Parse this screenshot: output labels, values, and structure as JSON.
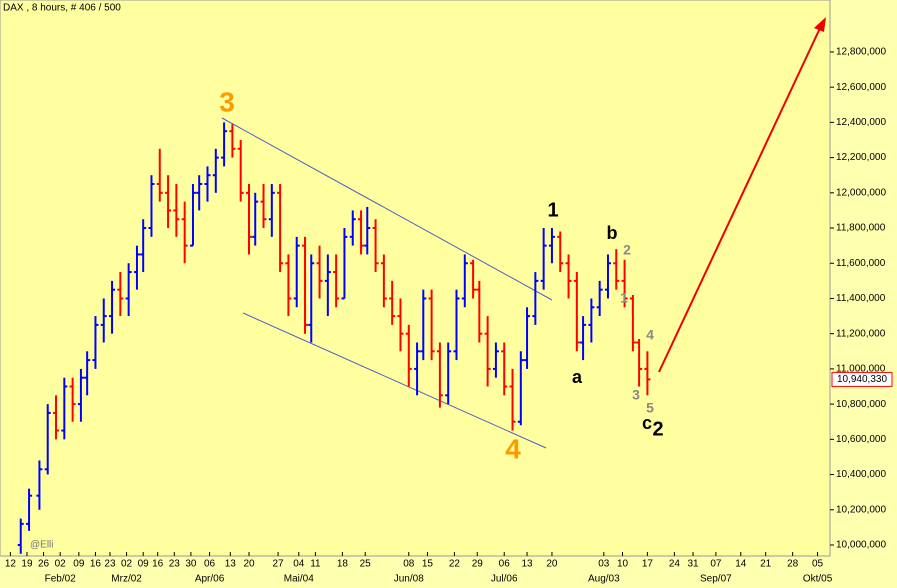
{
  "chart_data": {
    "type": "ohlc",
    "title": "DAX , 8 hours, # 406 / 500",
    "watermark": "@Elli",
    "x": [
      10,
      14,
      19,
      23,
      27,
      31,
      35,
      39,
      42,
      46,
      50,
      54,
      58,
      62,
      66,
      69,
      73,
      77,
      81,
      85,
      89,
      93,
      96,
      100,
      104,
      108,
      112,
      116,
      120,
      123,
      127,
      131,
      135,
      139,
      143,
      147,
      150,
      154,
      158,
      162,
      166,
      170,
      174,
      177,
      181,
      185,
      189,
      193,
      197,
      201,
      204,
      208,
      212,
      216,
      220,
      224,
      228,
      231,
      235,
      239,
      243,
      247,
      251,
      254,
      258,
      262,
      266,
      270,
      274,
      278,
      281,
      285,
      289,
      293,
      297,
      301,
      305,
      308,
      312
    ],
    "open": [
      10000000,
      10120000,
      10280000,
      10430000,
      10750000,
      10650000,
      10900000,
      10800000,
      10950000,
      11050000,
      11250000,
      11300000,
      11450000,
      11400000,
      11550000,
      11650000,
      11800000,
      12050000,
      12000000,
      11900000,
      11850000,
      11700000,
      12000000,
      12050000,
      12100000,
      12200000,
      12350000,
      12250000,
      12000000,
      11750000,
      11950000,
      11850000,
      12000000,
      11600000,
      11400000,
      11700000,
      11250000,
      11600000,
      11500000,
      11550000,
      11400000,
      11750000,
      11850000,
      11700000,
      11800000,
      11600000,
      11400000,
      11300000,
      11200000,
      11000000,
      11100000,
      11400000,
      11100000,
      10850000,
      11100000,
      11400000,
      11600000,
      11450000,
      11200000,
      11000000,
      11100000,
      10900000,
      10700000,
      11050000,
      11300000,
      11500000,
      11700000,
      11750000,
      11600000,
      11500000,
      11150000,
      11250000,
      11350000,
      11450000,
      11600000,
      11500000,
      11400000,
      11150000,
      11000000
    ],
    "high": [
      10150000,
      10320000,
      10480000,
      10800000,
      10850000,
      10950000,
      10950000,
      11000000,
      11100000,
      11300000,
      11400000,
      11500000,
      11550000,
      11600000,
      11700000,
      11850000,
      12100000,
      12250000,
      12100000,
      12050000,
      11950000,
      12050000,
      12100000,
      12150000,
      12250000,
      12400000,
      12390000,
      12300000,
      12050000,
      12000000,
      12050000,
      12050000,
      12050000,
      11650000,
      11750000,
      11750000,
      11650000,
      11700000,
      11650000,
      11650000,
      11800000,
      11900000,
      11900000,
      11920000,
      11850000,
      11650000,
      11500000,
      11400000,
      11250000,
      11150000,
      11450000,
      11450000,
      11150000,
      11150000,
      11450000,
      11650000,
      11620000,
      11500000,
      11300000,
      11150000,
      11150000,
      11000000,
      11100000,
      11350000,
      11550000,
      11800000,
      11800000,
      11780000,
      11650000,
      11550000,
      11300000,
      11400000,
      11500000,
      11650000,
      11680000,
      11620000,
      11420000,
      11170000,
      11100000
    ],
    "low": [
      9950000,
      10080000,
      10200000,
      10400000,
      10600000,
      10600000,
      10700000,
      10700000,
      10850000,
      11000000,
      11150000,
      11200000,
      11300000,
      11300000,
      11450000,
      11550000,
      11750000,
      11950000,
      11800000,
      11750000,
      11600000,
      11700000,
      11900000,
      11950000,
      12000000,
      12150000,
      12200000,
      11950000,
      11650000,
      11700000,
      11800000,
      11750000,
      11550000,
      11300000,
      11350000,
      11200000,
      11150000,
      11400000,
      11300000,
      11350000,
      11400000,
      11700000,
      11650000,
      11650000,
      11550000,
      11350000,
      11250000,
      11100000,
      10900000,
      10850000,
      11050000,
      11050000,
      10780000,
      10800000,
      11050000,
      11350000,
      11400000,
      11150000,
      10900000,
      10950000,
      10850000,
      10650000,
      10680000,
      11000000,
      11250000,
      11450000,
      11600000,
      11550000,
      11400000,
      11100000,
      11050000,
      11150000,
      11300000,
      11400000,
      11450000,
      11350000,
      11100000,
      10900000,
      10850000
    ],
    "close": [
      10120000,
      10280000,
      10430000,
      10750000,
      10650000,
      10900000,
      10800000,
      10950000,
      11050000,
      11250000,
      11300000,
      11450000,
      11400000,
      11550000,
      11650000,
      11800000,
      12050000,
      12000000,
      11900000,
      11850000,
      11700000,
      12000000,
      12050000,
      12100000,
      12200000,
      12350000,
      12250000,
      12000000,
      11750000,
      11950000,
      11850000,
      12000000,
      11600000,
      11400000,
      11700000,
      11250000,
      11600000,
      11500000,
      11550000,
      11400000,
      11750000,
      11850000,
      11700000,
      11800000,
      11600000,
      11400000,
      11300000,
      11200000,
      11000000,
      11100000,
      11400000,
      11100000,
      10850000,
      11100000,
      11400000,
      11600000,
      11450000,
      11200000,
      11000000,
      11100000,
      10900000,
      10700000,
      11050000,
      11300000,
      11500000,
      11700000,
      11750000,
      11600000,
      11500000,
      11150000,
      11250000,
      11350000,
      11450000,
      11600000,
      11500000,
      11400000,
      11150000,
      11000000,
      10940330
    ],
    "up_color": "#0000ff",
    "down_color": "#ff0000",
    "xlim": [
      0,
      400
    ],
    "ylim": [
      9937500,
      13095000
    ],
    "yticks": [
      {
        "value": 10000000,
        "label": "10,000,000"
      },
      {
        "value": 10200000,
        "label": "10,200,000"
      },
      {
        "value": 10400000,
        "label": "10,400,000"
      },
      {
        "value": 10600000,
        "label": "10,600,000"
      },
      {
        "value": 10800000,
        "label": "10,800,000"
      },
      {
        "value": 11000000,
        "label": "11,000,000"
      },
      {
        "value": 11200000,
        "label": "11,200,000"
      },
      {
        "value": 11400000,
        "label": "11,400,000"
      },
      {
        "value": 11600000,
        "label": "11,600,000"
      },
      {
        "value": 11800000,
        "label": "11,800,000"
      },
      {
        "value": 12000000,
        "label": "12,000,000"
      },
      {
        "value": 12200000,
        "label": "12,200,000"
      },
      {
        "value": 12400000,
        "label": "12,400,000"
      },
      {
        "value": 12600000,
        "label": "12,600,000"
      },
      {
        "value": 12800000,
        "label": "12,800,000"
      }
    ],
    "xticks": [
      {
        "value": 5,
        "label": "12"
      },
      {
        "value": 13,
        "label": "19"
      },
      {
        "value": 21,
        "label": "26"
      },
      {
        "value": 29,
        "label": "02"
      },
      {
        "value": 38,
        "label": "09"
      },
      {
        "value": 46,
        "label": "16"
      },
      {
        "value": 53,
        "label": "23"
      },
      {
        "value": 61,
        "label": "02"
      },
      {
        "value": 69,
        "label": "09"
      },
      {
        "value": 76,
        "label": "16"
      },
      {
        "value": 84,
        "label": "23"
      },
      {
        "value": 92,
        "label": "30"
      },
      {
        "value": 101,
        "label": "06"
      },
      {
        "value": 111,
        "label": "13"
      },
      {
        "value": 120,
        "label": "20"
      },
      {
        "value": 134,
        "label": "27"
      },
      {
        "value": 144,
        "label": "04"
      },
      {
        "value": 152,
        "label": "11"
      },
      {
        "value": 165,
        "label": "18"
      },
      {
        "value": 176,
        "label": "25"
      },
      {
        "value": 197,
        "label": "08"
      },
      {
        "value": 206,
        "label": "15"
      },
      {
        "value": 219,
        "label": "22"
      },
      {
        "value": 230,
        "label": "29"
      },
      {
        "value": 243,
        "label": "06"
      },
      {
        "value": 254,
        "label": "13"
      },
      {
        "value": 266,
        "label": "20"
      },
      {
        "value": 291,
        "label": "03"
      },
      {
        "value": 300,
        "label": "10"
      },
      {
        "value": 312,
        "label": "17"
      },
      {
        "value": 325,
        "label": "24"
      },
      {
        "value": 334,
        "label": "31"
      },
      {
        "value": 345,
        "label": "07"
      },
      {
        "value": 357,
        "label": "14"
      },
      {
        "value": 369,
        "label": "21"
      },
      {
        "value": 382,
        "label": "28"
      },
      {
        "value": 394,
        "label": "05"
      }
    ],
    "month_ticks": [
      {
        "value": 29,
        "label": "Feb/02"
      },
      {
        "value": 61,
        "label": "Mrz/02"
      },
      {
        "value": 101,
        "label": "Apr/06"
      },
      {
        "value": 144,
        "label": "Mai/04"
      },
      {
        "value": 197,
        "label": "Jun/08"
      },
      {
        "value": 243,
        "label": "Jul/06"
      },
      {
        "value": 291,
        "label": "Aug/03"
      },
      {
        "value": 345,
        "label": "Sep/07"
      },
      {
        "value": 394,
        "label": "Okt/05"
      }
    ],
    "last_price": {
      "value": 10940330,
      "label": "10,940,330"
    },
    "annotations": [
      "3",
      "4",
      "1",
      "a",
      "b",
      "c",
      "2",
      "2",
      "1",
      "4",
      "3",
      "5"
    ]
  }
}
